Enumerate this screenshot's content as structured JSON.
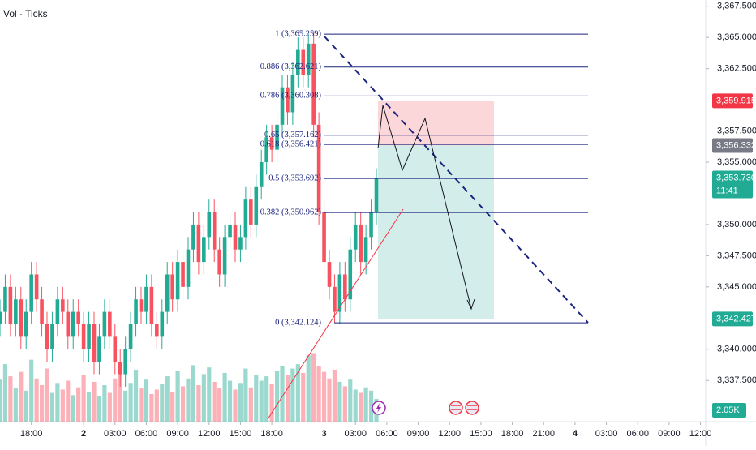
{
  "header": {
    "indicator": "Vol · Ticks"
  },
  "chart_data": {
    "type": "candlestick",
    "x": [
      0,
      1,
      2,
      3,
      4,
      5,
      6,
      7,
      8,
      9,
      10,
      11,
      12,
      13,
      14,
      15,
      16,
      17,
      18,
      19,
      20,
      21,
      22,
      23,
      24,
      25,
      26,
      27,
      28,
      29,
      30,
      31,
      32,
      33,
      34,
      35,
      36,
      37,
      38,
      39,
      40,
      41,
      42,
      43,
      44,
      45,
      46,
      47,
      48,
      49,
      50,
      51,
      52,
      53,
      54,
      55,
      56,
      57,
      58,
      59,
      60,
      61,
      62,
      63,
      64,
      65,
      66,
      67,
      68,
      69,
      70,
      71,
      72
    ],
    "open": [
      3342,
      3343,
      3345,
      3342,
      3344,
      3341,
      3343,
      3346,
      3344,
      3342,
      3340,
      3342,
      3344,
      3343,
      3341,
      3343,
      3342,
      3340,
      3342,
      3339,
      3341,
      3343,
      3341,
      3339,
      3338,
      3340,
      3342,
      3344,
      3343,
      3345,
      3342,
      3341,
      3343,
      3346,
      3344,
      3347,
      3345,
      3348,
      3350,
      3347,
      3349,
      3351,
      3348,
      3346,
      3349,
      3350,
      3348,
      3349,
      3352,
      3350,
      3353,
      3355,
      3357,
      3356,
      3358,
      3361,
      3359,
      3362,
      3364,
      3362,
      3364.5,
      3358,
      3351,
      3347,
      3345,
      3343,
      3346,
      3344,
      3348,
      3350,
      3347,
      3349,
      3351
    ],
    "high": [
      3344,
      3346,
      3346,
      3345,
      3345,
      3344,
      3347,
      3347,
      3345,
      3343,
      3343,
      3345,
      3345,
      3344,
      3344,
      3344,
      3343,
      3343,
      3343,
      3342,
      3344,
      3344,
      3342,
      3340,
      3341,
      3343,
      3345,
      3345,
      3346,
      3346,
      3343,
      3344,
      3347,
      3347,
      3348,
      3348,
      3349,
      3351,
      3351,
      3350,
      3352,
      3352,
      3349,
      3350,
      3351,
      3351,
      3350,
      3353,
      3353,
      3354,
      3356,
      3358,
      3358,
      3359,
      3362,
      3362,
      3363,
      3365,
      3365,
      3365.259,
      3365.5,
      3359,
      3352,
      3348,
      3346,
      3347,
      3347,
      3349,
      3351,
      3351,
      3350,
      3352,
      3354.5
    ],
    "low": [
      3341,
      3342,
      3341,
      3341,
      3340,
      3340,
      3342,
      3343,
      3341,
      3339,
      3339,
      3341,
      3342,
      3340,
      3340,
      3341,
      3339,
      3339,
      3338,
      3338,
      3340,
      3340,
      3338,
      3337,
      3337,
      3339,
      3341,
      3342,
      3342,
      3341,
      3340,
      3340,
      3342,
      3343,
      3343,
      3344,
      3344,
      3347,
      3346,
      3346,
      3348,
      3347,
      3345,
      3345,
      3348,
      3347,
      3347,
      3348,
      3349,
      3349,
      3352,
      3354,
      3355,
      3355,
      3357,
      3358,
      3358,
      3361,
      3361,
      3361,
      3357,
      3350,
      3346,
      3344,
      3342.124,
      3342,
      3343,
      3343,
      3347,
      3346,
      3346,
      3348,
      3350
    ],
    "close": [
      3343,
      3345,
      3342,
      3344,
      3341,
      3343,
      3346,
      3344,
      3342,
      3340,
      3342,
      3344,
      3343,
      3341,
      3343,
      3342,
      3340,
      3342,
      3339,
      3341,
      3343,
      3341,
      3339,
      3338,
      3340,
      3342,
      3344,
      3343,
      3345,
      3342,
      3341,
      3343,
      3346,
      3344,
      3347,
      3345,
      3348,
      3350,
      3347,
      3349,
      3351,
      3348,
      3346,
      3349,
      3350,
      3348,
      3349,
      3352,
      3350,
      3353,
      3355,
      3357,
      3356,
      3358,
      3361,
      3359,
      3362,
      3364,
      3362,
      3364.5,
      3358,
      3351,
      3347,
      3345,
      3343,
      3346,
      3344,
      3348,
      3350,
      3347,
      3349,
      3351,
      3353.73
    ],
    "volume": [
      3800,
      5200,
      4100,
      3000,
      4500,
      2800,
      5600,
      3900,
      3300,
      4800,
      2600,
      3500,
      2900,
      3700,
      2400,
      3100,
      4200,
      2700,
      3600,
      2300,
      3300,
      2600,
      3900,
      4400,
      2800,
      3500,
      4700,
      3000,
      3800,
      2500,
      2900,
      3400,
      4100,
      2700,
      4600,
      3200,
      3900,
      5100,
      3300,
      4300,
      4900,
      3600,
      3000,
      4400,
      3700,
      2900,
      3500,
      4800,
      3100,
      4200,
      3700,
      4100,
      3400,
      4600,
      5000,
      4200,
      4800,
      5200,
      4400,
      6000,
      6200,
      5000,
      4500,
      3900,
      4700,
      3600,
      3200,
      3800,
      2900,
      2600,
      3100,
      2800,
      2050
    ],
    "up_color": "#22ab94",
    "down_color": "#f7525f",
    "xlim": [
      0,
      135
    ],
    "ylim": [
      3334.2,
      3368.0
    ],
    "volume_lim": [
      0,
      11000
    ],
    "xticks": [
      {
        "value": 6,
        "label": "18:00"
      },
      {
        "value": 16,
        "label": "2"
      },
      {
        "value": 22,
        "label": "03:00"
      },
      {
        "value": 28,
        "label": "06:00"
      },
      {
        "value": 34,
        "label": "09:00"
      },
      {
        "value": 40,
        "label": "12:00"
      },
      {
        "value": 46,
        "label": "15:00"
      },
      {
        "value": 52,
        "label": "18:00"
      },
      {
        "value": 62,
        "label": "3"
      },
      {
        "value": 68,
        "label": "03:00"
      },
      {
        "value": 74,
        "label": "06:00"
      },
      {
        "value": 80,
        "label": "09:00"
      },
      {
        "value": 86,
        "label": "12:00"
      },
      {
        "value": 92,
        "label": "15:00"
      },
      {
        "value": 98,
        "label": "18:00"
      },
      {
        "value": 104,
        "label": "21:00"
      },
      {
        "value": 110,
        "label": "4"
      },
      {
        "value": 116,
        "label": "03:00"
      },
      {
        "value": 122,
        "label": "06:00"
      },
      {
        "value": 128,
        "label": "09:00"
      },
      {
        "value": 134,
        "label": "12:00"
      }
    ],
    "yticks": [
      {
        "value": 3367.5,
        "label": "3,367.500"
      },
      {
        "value": 3365,
        "label": "3,365.000"
      },
      {
        "value": 3362.5,
        "label": "3,362.500"
      },
      {
        "value": 3357.5,
        "label": "3,357.500"
      },
      {
        "value": 3355,
        "label": "3,355.000"
      },
      {
        "value": 3350,
        "label": "3,350.000"
      },
      {
        "value": 3347.5,
        "label": "3,347.500"
      },
      {
        "value": 3345,
        "label": "3,345.000"
      },
      {
        "value": 3340,
        "label": "3,340.000"
      },
      {
        "value": 3337.5,
        "label": "3,337.500"
      }
    ],
    "fib": {
      "prices": [
        3365.259,
        3362.621,
        3360.308,
        3357.162,
        3356.421,
        3353.692,
        3350.962,
        3342.124
      ],
      "labels": [
        "1 (3,365.259)",
        "0.886 (3,362.621)",
        "0.786 (3,360.308)",
        "0.65 (3,357.162)",
        "0.618 (3,356.421)",
        "0.5 (3,353.692)",
        "0.382 (3,350.962)",
        "0 (3,342.124)"
      ],
      "color": "#1a237e"
    },
    "position": {
      "stop": 3359.915,
      "entry": 3356.332,
      "target": 3342.427
    },
    "price_labels": [
      {
        "value": 3359.915,
        "label": "3,359.915",
        "color": "#f23645"
      },
      {
        "value": 3356.332,
        "label": "3,356.332",
        "color": "#787b86"
      },
      {
        "value": 3353.73,
        "label": "3,353.730",
        "color": "#22ab94",
        "timer": "11:41"
      },
      {
        "value": 3342.427,
        "label": "3,342.427",
        "color": "#22ab94"
      }
    ],
    "volume_label": {
      "value": 2050,
      "label": "2.05K",
      "color": "#22ab94"
    }
  }
}
